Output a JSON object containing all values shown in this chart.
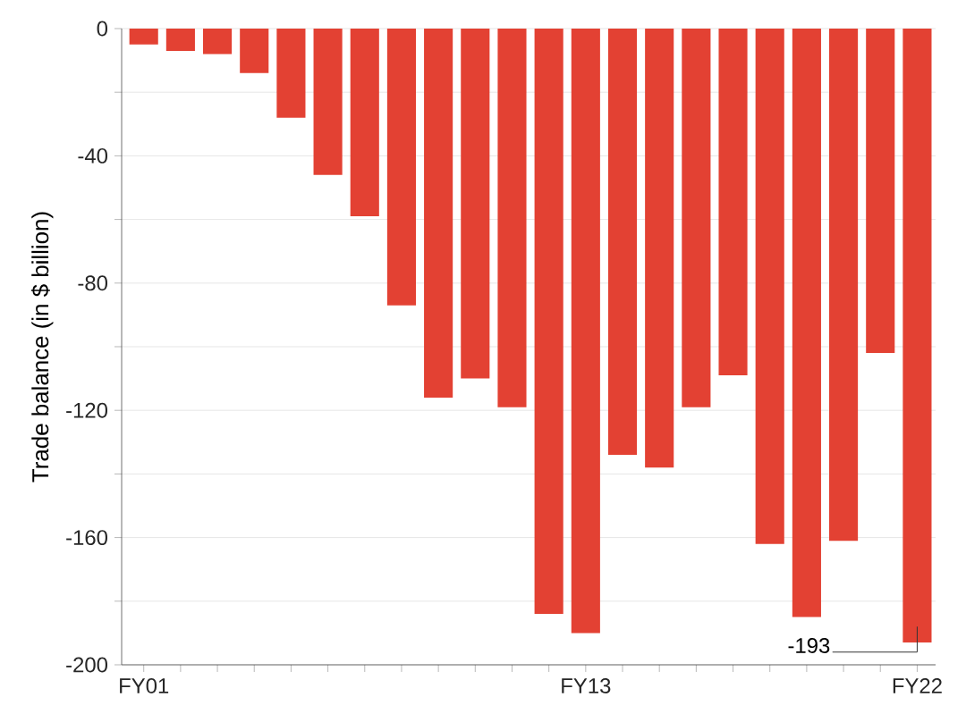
{
  "chart_data": {
    "type": "bar",
    "ylabel": "Trade balance (in $ billion)",
    "categories": [
      "FY01",
      null,
      null,
      null,
      null,
      null,
      null,
      null,
      null,
      null,
      null,
      null,
      "FY13",
      null,
      null,
      null,
      null,
      null,
      null,
      null,
      null,
      "FY22"
    ],
    "values": [
      -5,
      -7,
      -8,
      -14,
      -28,
      -46,
      -59,
      -87,
      -116,
      -110,
      -119,
      -184,
      -190,
      -134,
      -138,
      -119,
      -109,
      -162,
      -185,
      -161,
      -102,
      -193
    ],
    "color": "#e34133",
    "ylim": [
      -200,
      0
    ],
    "yticks": [
      -200,
      {
        "value": -180,
        "label": null
      },
      -160,
      {
        "value": -140,
        "label": null
      },
      -120,
      {
        "value": -100,
        "label": null
      },
      -80,
      {
        "value": -60,
        "label": null
      },
      -40,
      {
        "value": -20,
        "label": null
      },
      0
    ],
    "grid": "y",
    "annotations": [
      {
        "text": "-193",
        "x": "FY22",
        "y": -193
      }
    ]
  }
}
